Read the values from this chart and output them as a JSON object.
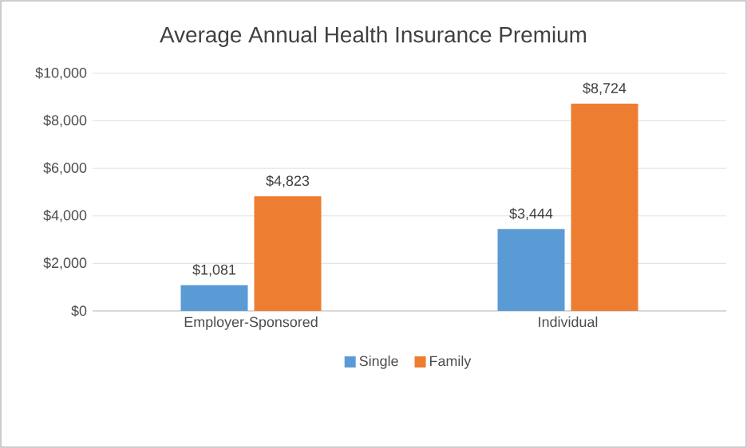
{
  "chart_data": {
    "type": "bar",
    "title": "Average Annual Health Insurance Premium",
    "categories": [
      "Employer-Sponsored",
      "Individual"
    ],
    "series": [
      {
        "name": "Single",
        "color": "#5b9bd5",
        "values": [
          1081,
          3444
        ],
        "value_labels": [
          "$1,081",
          "$3,444"
        ]
      },
      {
        "name": "Family",
        "color": "#ed7d31",
        "values": [
          4823,
          8724
        ],
        "value_labels": [
          "$4,823",
          "$8,724"
        ]
      }
    ],
    "ylim": [
      0,
      10000
    ],
    "yticks": [
      {
        "value": 0,
        "label": "$0"
      },
      {
        "value": 2000,
        "label": "$2,000"
      },
      {
        "value": 4000,
        "label": "$4,000"
      },
      {
        "value": 6000,
        "label": "$6,000"
      },
      {
        "value": 8000,
        "label": "$8,000"
      },
      {
        "value": 10000,
        "label": "$10,000"
      }
    ],
    "grid": "y",
    "legend": "bottom"
  }
}
